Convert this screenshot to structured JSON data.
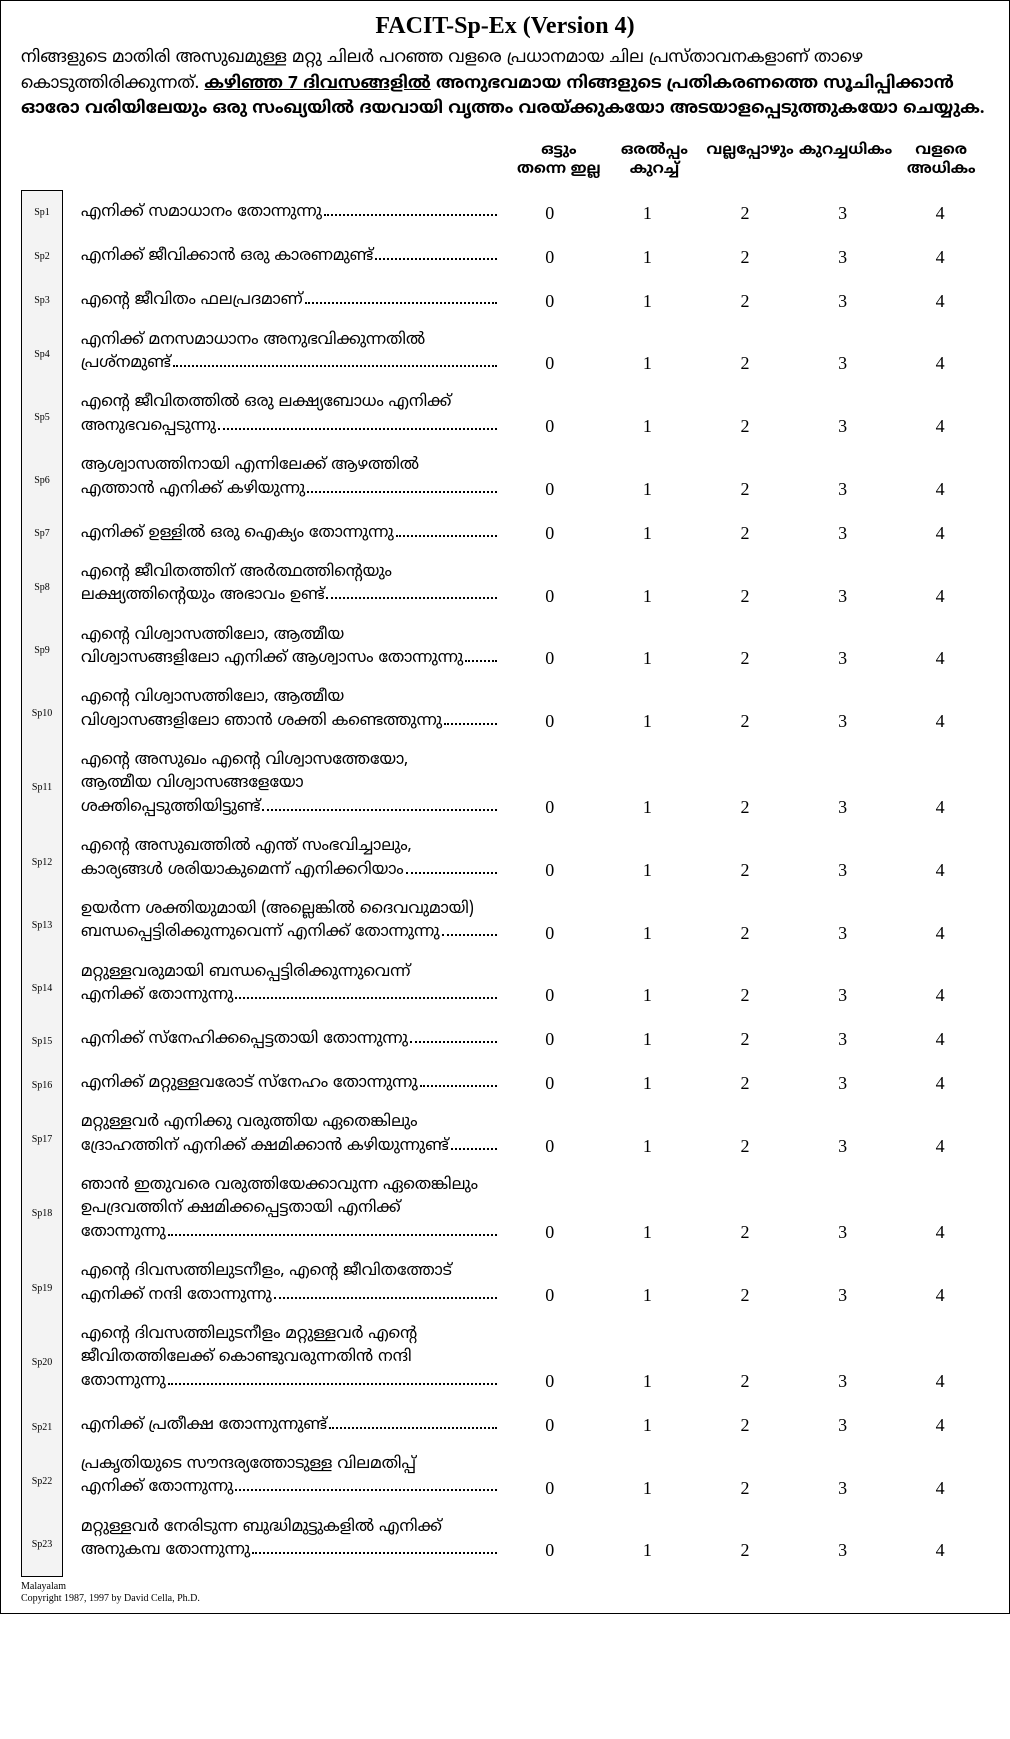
{
  "title": "FACIT-Sp-Ex (Version 4)",
  "intro": {
    "line1": "നിങ്ങളുടെ മാതിരി അസുഖമുള്ള മറ്റു ചിലർ പറഞ്ഞ വളരെ പ്രധാനമായ ചില പ്രസ്താവനകളാണ് താഴെ കൊടുത്തിരിക്കുന്നത്. ",
    "underlined": "കഴിഞ്ഞ 7 ദിവസങ്ങളിൽ",
    "line2": " അനുഭവമായ നിങ്ങളുടെ പ്രതികരണത്തെ സൂചിപ്പിക്കാൻ ഓരോ വരിയിലേയും ഒരു സംഖ്യയിൽ ദയവായി വൃത്തം വരയ്ക്കുകയോ അടയാളപ്പെടുത്തുകയോ ചെയ്യുക."
  },
  "headers": [
    "ഒട്ടും\nതന്നെ ഇല്ല",
    "ഒരൽപ്പം\nകുറച്ച്",
    "വല്ലപ്പോഴും",
    "കുറച്ചധികം",
    "വളരെ\nഅധികം"
  ],
  "scale": [
    "0",
    "1",
    "2",
    "3",
    "4"
  ],
  "items": [
    {
      "code": "Sp1",
      "lines": [
        "എനിക്ക് സമാധാനം തോന്നുന്നു"
      ]
    },
    {
      "code": "Sp2",
      "lines": [
        "എനിക്ക് ജീവിക്കാൻ ഒരു കാരണമുണ്ട് "
      ]
    },
    {
      "code": "Sp3",
      "lines": [
        "എന്റെ ജീവിതം ഫലപ്രദമാണ്"
      ]
    },
    {
      "code": "Sp4",
      "lines": [
        "എനിക്ക് മനസമാധാനം അനുഭവിക്കുന്നതിൽ",
        "പ്രശ്നമുണ്ട്"
      ]
    },
    {
      "code": "Sp5",
      "lines": [
        "എന്റെ ജീവിതത്തിൽ ഒരു ലക്ഷ്യബോധം എനിക്ക്",
        "അനുഭവപ്പെടുന്നു "
      ]
    },
    {
      "code": "Sp6",
      "lines": [
        "ആശ്വാസത്തിനായി എന്നിലേക്ക് ആഴത്തിൽ",
        "എത്താൻ എനിക്ക് കഴിയുന്നു "
      ]
    },
    {
      "code": "Sp7",
      "lines": [
        "എനിക്ക് ഉള്ളിൽ ഒരു ഐക്യം തോന്നുന്നു"
      ]
    },
    {
      "code": "Sp8",
      "lines": [
        "എന്റെ ജീവിതത്തിന് അർത്ഥത്തിന്റെയും",
        "ലക്ഷ്യത്തിന്റെയും അഭാവം ഉണ്ട്"
      ]
    },
    {
      "code": "Sp9",
      "lines": [
        "എന്റെ വിശ്വാസത്തിലോ, ആത്മീയ",
        "വിശ്വാസങ്ങളിലോ എനിക്ക് ആശ്വാസം തോന്നുന്നു"
      ]
    },
    {
      "code": "Sp10",
      "lines": [
        "എന്റെ വിശ്വാസത്തിലോ, ആത്മീയ",
        "വിശ്വാസങ്ങളിലോ ഞാൻ ശക്തി കണ്ടെത്തുന്നു"
      ]
    },
    {
      "code": "Sp11",
      "lines": [
        "എന്റെ അസുഖം എന്റെ വിശ്വാസത്തേയോ,",
        "ആത്മീയ വിശ്വാസങ്ങളേയോ",
        "ശക്തിപ്പെടുത്തിയിട്ടുണ്ട്"
      ]
    },
    {
      "code": "Sp12",
      "lines": [
        "എന്റെ അസുഖത്തിൽ എന്ത് സംഭവിച്ചാലും,",
        "കാര്യങ്ങൾ ശരിയാകുമെന്ന് എനിക്കറിയാം "
      ]
    },
    {
      "code": "Sp13",
      "lines": [
        "ഉയർന്ന ശക്തിയുമായി (അല്ലെങ്കിൽ ദൈവവുമായി)",
        "ബന്ധപ്പെട്ടിരിക്കുന്നുവെന്ന് എനിക്ക് തോന്നുന്നു"
      ]
    },
    {
      "code": "Sp14",
      "lines": [
        "മറ്റുള്ളവരുമായി ബന്ധപ്പെട്ടിരിക്കുന്നുവെന്ന്",
        "എനിക്ക് തോന്നുന്നു"
      ]
    },
    {
      "code": "Sp15",
      "lines": [
        "എനിക്ക് സ്നേഹിക്കപ്പെട്ടതായി തോന്നുന്നു"
      ]
    },
    {
      "code": "Sp16",
      "lines": [
        "എനിക്ക് മറ്റുള്ളവരോട് സ്നേഹം തോന്നുന്നു"
      ]
    },
    {
      "code": "Sp17",
      "lines": [
        "മറ്റുള്ളവർ എനിക്കു വരുത്തിയ ഏതെങ്കിലും",
        "ദ്രോഹത്തിന് എനിക്ക് ക്ഷമിക്കാൻ കഴിയുന്നുണ്ട് "
      ]
    },
    {
      "code": "Sp18",
      "lines": [
        "ഞാൻ ഇതുവരെ വരുത്തിയേക്കാവുന്ന ഏതെങ്കിലും",
        "ഉപദ്രവത്തിന് ക്ഷമിക്കപ്പെട്ടതായി എനിക്ക്",
        "തോന്നുന്നു "
      ]
    },
    {
      "code": "Sp19",
      "lines": [
        "എന്റെ ദിവസത്തിലുടനീളം, എന്റെ ജീവിതത്തോട്",
        "എനിക്ക് നന്ദി തോന്നുന്നു "
      ]
    },
    {
      "code": "Sp20",
      "lines": [
        "എന്റെ ദിവസത്തിലുടനീളം മറ്റുള്ളവർ എന്റെ",
        "ജീവിതത്തിലേക്ക് കൊണ്ടുവരുന്നതിൻ നന്ദി",
        "തോന്നുന്നു "
      ]
    },
    {
      "code": "Sp21",
      "lines": [
        "എനിക്ക് പ്രതീക്ഷ തോന്നുന്നുണ്ട്"
      ]
    },
    {
      "code": "Sp22",
      "lines": [
        "പ്രകൃതിയുടെ സൗന്ദര്യത്തോടുള്ള വിലമതിപ്പ്",
        "എനിക്ക് തോന്നുന്നു "
      ]
    },
    {
      "code": "Sp23",
      "lines": [
        "മറ്റുള്ളവർ നേരിടുന്ന ബുദ്ധിമുട്ടുകളിൽ എനിക്ക്",
        "അനുകമ്പ തോന്നുന്നു "
      ]
    }
  ],
  "footer": {
    "lang": "Malayalam",
    "copyright": "Copyright 1987, 1997 by David Cella, Ph.D."
  }
}
